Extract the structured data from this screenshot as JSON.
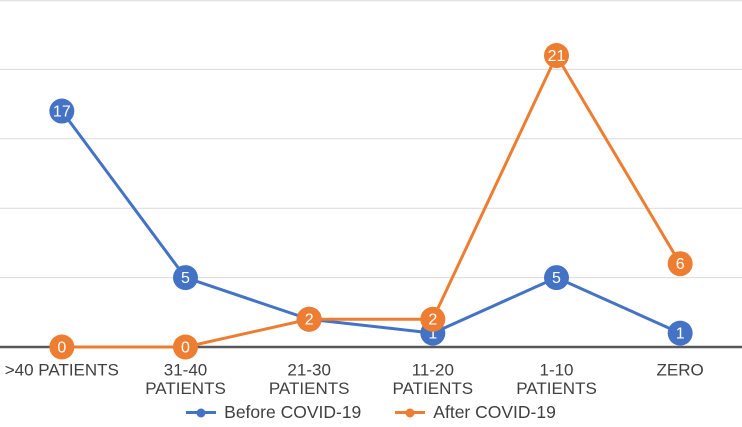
{
  "chart_data": {
    "type": "line",
    "categories": [
      ">40 PATIENTS",
      "31-40\nPATIENTS",
      "21-30\nPATIENTS",
      "11-20\nPATIENTS",
      "1-10\nPATIENTS",
      "ZERO"
    ],
    "series": [
      {
        "name": "Before COVID-19",
        "color": "#4472C4",
        "values": [
          17,
          5,
          2,
          1,
          5,
          1
        ]
      },
      {
        "name": "After COVID-19",
        "color": "#ED7D31",
        "values": [
          0,
          0,
          2,
          2,
          21,
          6
        ]
      }
    ],
    "ylim": [
      0,
      25
    ],
    "grid_step": 5,
    "grid": true,
    "legend_position": "bottom",
    "data_labels": true
  },
  "colors": {
    "gridline": "#D9D9D9",
    "axis": "#595959",
    "label_text": "#404040",
    "marker_label": "#FFFFFF",
    "background": "#FFFFFF"
  }
}
